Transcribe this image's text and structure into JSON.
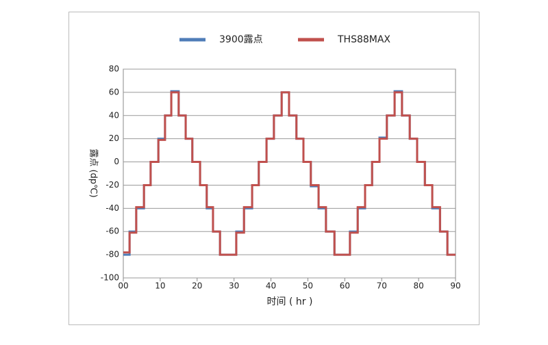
{
  "chart_data": {
    "type": "line",
    "step": "post",
    "x_label": "时间 ( hr )",
    "y_label": "露点 (dp℃)",
    "xlim": [
      0,
      90
    ],
    "xticks": [
      {
        "value": 0,
        "label": "00"
      },
      10,
      20,
      30,
      40,
      50,
      60,
      70,
      80,
      90
    ],
    "ylim": [
      -100,
      80
    ],
    "yticks": [
      -100,
      -80,
      -60,
      -40,
      -20,
      0,
      20,
      40,
      60,
      80
    ],
    "grid": true,
    "legend": "top",
    "x": [
      0,
      1.7,
      3.5,
      5.6,
      7.4,
      9.5,
      11.3,
      13.0,
      15.0,
      16.9,
      18.7,
      20.8,
      22.6,
      24.3,
      26.2,
      30.6,
      32.7,
      34.9,
      36.7,
      38.8,
      40.8,
      42.9,
      44.9,
      46.9,
      48.8,
      50.8,
      52.9,
      54.9,
      57.2,
      61.4,
      63.5,
      65.5,
      67.4,
      69.4,
      71.4,
      73.5,
      75.5,
      77.6,
      79.6,
      81.7,
      83.7,
      85.8,
      87.8,
      90
    ],
    "series": [
      {
        "name": "3900露点",
        "color": "#4f7db8",
        "values": [
          -80,
          -60,
          -40,
          -20,
          0,
          20,
          40,
          61,
          40,
          20,
          0,
          -20,
          -40,
          -60,
          -80,
          -60,
          -40,
          -20,
          0,
          20,
          40,
          60,
          40,
          20,
          0,
          -21,
          -40,
          -60,
          -80,
          -60,
          -40,
          -20,
          0,
          21,
          40,
          61,
          40,
          20,
          0,
          -20,
          -40,
          -60,
          -80,
          -80
        ]
      },
      {
        "name": "THS88MAX",
        "color": "#c0504d",
        "values": [
          -78,
          -61,
          -39,
          -20,
          0,
          19,
          40,
          60,
          40,
          20,
          0,
          -20,
          -39,
          -60,
          -80,
          -61,
          -39,
          -20,
          0,
          20,
          40,
          60,
          40,
          20,
          0,
          -20,
          -39,
          -60,
          -80,
          -61,
          -39,
          -20,
          0,
          20,
          40,
          60,
          40,
          20,
          0,
          -20,
          -39,
          -60,
          -80,
          -80
        ]
      }
    ]
  }
}
